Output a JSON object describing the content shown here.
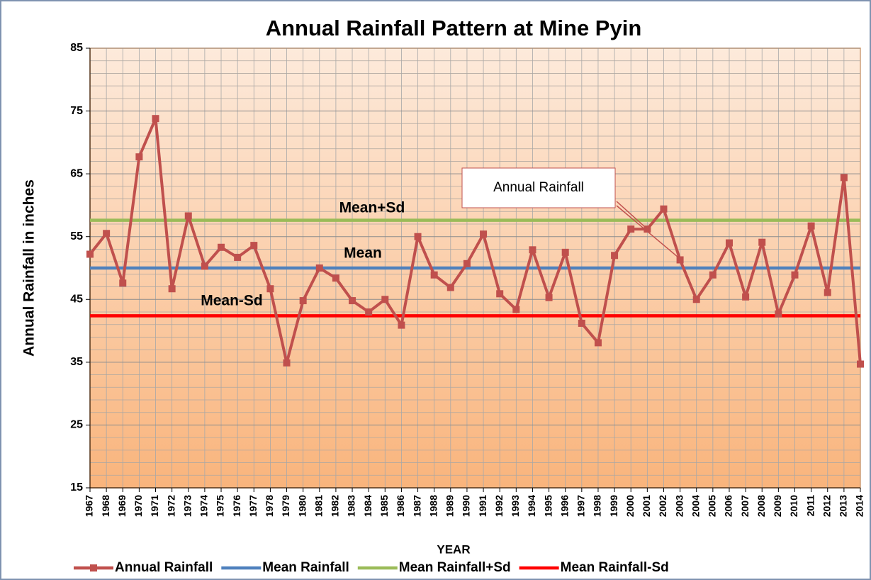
{
  "chart_data": {
    "type": "line",
    "title": "Annual Rainfall Pattern at Mine Pyin",
    "x_label": "YEAR",
    "y_label": "Annual Rainfall in inches",
    "categories": [
      "1967",
      "1968",
      "1969",
      "1970",
      "1971",
      "1972",
      "1973",
      "1974",
      "1975",
      "1976",
      "1977",
      "1978",
      "1979",
      "1980",
      "1981",
      "1982",
      "1983",
      "1984",
      "1985",
      "1986",
      "1987",
      "1988",
      "1989",
      "1990",
      "1991",
      "1992",
      "1993",
      "1994",
      "1995",
      "1996",
      "1997",
      "1998",
      "1999",
      "2000",
      "2001",
      "2002",
      "2003",
      "2004",
      "2005",
      "2006",
      "2007",
      "2008",
      "2009",
      "2010",
      "2011",
      "2012",
      "2013",
      "2014"
    ],
    "series": [
      {
        "name": "Annual Rainfall",
        "color": "#c0504d",
        "marker": "square",
        "values": [
          52.2,
          55.5,
          47.6,
          67.7,
          73.8,
          46.7,
          58.3,
          50.3,
          53.3,
          51.7,
          53.6,
          46.7,
          34.9,
          44.8,
          50.0,
          48.4,
          44.8,
          43.0,
          45.0,
          40.9,
          55.0,
          48.9,
          46.9,
          50.7,
          55.4,
          45.9,
          43.4,
          52.9,
          45.3,
          52.5,
          41.2,
          38.1,
          52.0,
          56.2,
          56.2,
          59.4,
          51.3,
          45.0,
          48.9,
          54.0,
          45.4,
          54.1,
          42.7,
          48.9,
          56.7,
          46.1,
          64.4,
          34.7
        ]
      },
      {
        "name": "Mean Rainfall",
        "color": "#4f81bd",
        "values": [
          50,
          50,
          50,
          50,
          50,
          50,
          50,
          50,
          50,
          50,
          50,
          50,
          50,
          50,
          50,
          50,
          50,
          50,
          50,
          50,
          50,
          50,
          50,
          50,
          50,
          50,
          50,
          50,
          50,
          50,
          50,
          50,
          50,
          50,
          50,
          50,
          50,
          50,
          50,
          50,
          50,
          50,
          50,
          50,
          50,
          50,
          50,
          50
        ]
      },
      {
        "name": "Mean Rainfall+Sd",
        "color": "#9bbb59",
        "values": [
          57.6,
          57.6,
          57.6,
          57.6,
          57.6,
          57.6,
          57.6,
          57.6,
          57.6,
          57.6,
          57.6,
          57.6,
          57.6,
          57.6,
          57.6,
          57.6,
          57.6,
          57.6,
          57.6,
          57.6,
          57.6,
          57.6,
          57.6,
          57.6,
          57.6,
          57.6,
          57.6,
          57.6,
          57.6,
          57.6,
          57.6,
          57.6,
          57.6,
          57.6,
          57.6,
          57.6,
          57.6,
          57.6,
          57.6,
          57.6,
          57.6,
          57.6,
          57.6,
          57.6,
          57.6,
          57.6,
          57.6,
          57.6
        ]
      },
      {
        "name": "Mean Rainfall-Sd",
        "color": "#ff0000",
        "values": [
          42.4,
          42.4,
          42.4,
          42.4,
          42.4,
          42.4,
          42.4,
          42.4,
          42.4,
          42.4,
          42.4,
          42.4,
          42.4,
          42.4,
          42.4,
          42.4,
          42.4,
          42.4,
          42.4,
          42.4,
          42.4,
          42.4,
          42.4,
          42.4,
          42.4,
          42.4,
          42.4,
          42.4,
          42.4,
          42.4,
          42.4,
          42.4,
          42.4,
          42.4,
          42.4,
          42.4,
          42.4,
          42.4,
          42.4,
          42.4,
          42.4,
          42.4,
          42.4,
          42.4,
          42.4,
          42.4,
          42.4,
          42.4
        ]
      }
    ],
    "annotations": [
      "Mean+Sd",
      "Mean",
      "Mean-Sd",
      "Annual Rainfall"
    ],
    "ylim": [
      15,
      85
    ],
    "yticks": [
      15,
      25,
      35,
      45,
      55,
      65,
      75,
      85
    ],
    "grid": true,
    "legend": "bottom"
  }
}
